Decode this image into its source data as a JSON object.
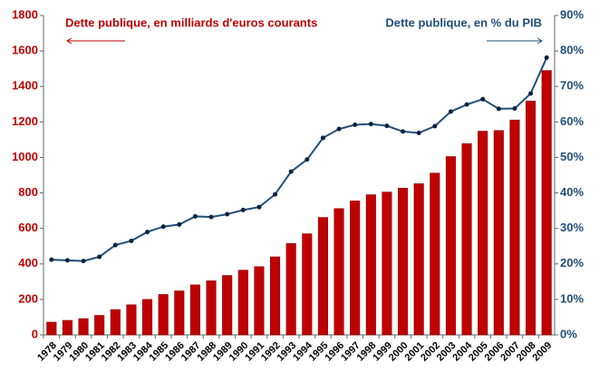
{
  "chart_data": {
    "type": "bar",
    "categories": [
      "1978",
      "1979",
      "1980",
      "1981",
      "1982",
      "1983",
      "1984",
      "1985",
      "1986",
      "1987",
      "1988",
      "1989",
      "1990",
      "1991",
      "1992",
      "1993",
      "1994",
      "1995",
      "1996",
      "1997",
      "1998",
      "1999",
      "2000",
      "2001",
      "2002",
      "2003",
      "2004",
      "2005",
      "2006",
      "2007",
      "2008",
      "2009"
    ],
    "series": [
      {
        "name": "Dette publique, en milliards d'euros courants",
        "color": "#c00000",
        "type": "bar",
        "values": [
          72,
          82,
          92,
          110,
          143,
          170,
          200,
          228,
          248,
          282,
          305,
          335,
          365,
          385,
          440,
          515,
          570,
          662,
          712,
          755,
          790,
          805,
          827,
          852,
          912,
          1005,
          1078,
          1148,
          1152,
          1211,
          1318,
          1490
        ]
      },
      {
        "name": "Dette publique, en % du PIB",
        "color": "#1f4e79",
        "type": "line",
        "axis": "y2",
        "values": [
          21.2,
          21.0,
          20.8,
          22.0,
          25.3,
          26.5,
          29.0,
          30.5,
          31.1,
          33.4,
          33.2,
          34.0,
          35.2,
          36.0,
          39.6,
          46.0,
          49.4,
          55.5,
          58.0,
          59.2,
          59.4,
          58.9,
          57.3,
          56.9,
          58.8,
          62.9,
          64.9,
          66.4,
          63.7,
          63.8,
          68.0,
          78.1
        ]
      }
    ],
    "ylim": [
      0,
      1800
    ],
    "yticks": [
      0,
      200,
      400,
      600,
      800,
      1000,
      1200,
      1400,
      1600,
      1800
    ],
    "y2lim": [
      0,
      90
    ],
    "y2ticks": [
      {
        "value": 0,
        "label": "0%"
      },
      {
        "value": 10,
        "label": "10%"
      },
      {
        "value": 20,
        "label": "20%"
      },
      {
        "value": 30,
        "label": "30%"
      },
      {
        "value": 40,
        "label": "40%"
      },
      {
        "value": 50,
        "label": "50%"
      },
      {
        "value": 60,
        "label": "60%"
      },
      {
        "value": 70,
        "label": "70%"
      },
      {
        "value": 80,
        "label": "80%"
      },
      {
        "value": 90,
        "label": "90%"
      }
    ]
  }
}
